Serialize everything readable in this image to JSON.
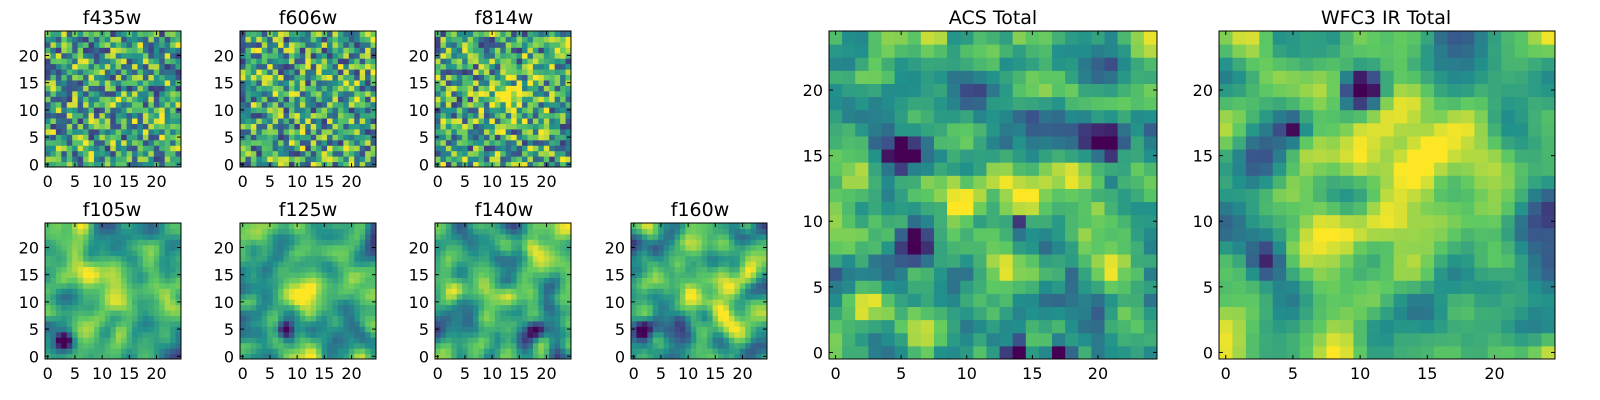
{
  "figure": {
    "colormap": "viridis",
    "colormap_stops": [
      "#440154",
      "#3b528b",
      "#21918c",
      "#5ec962",
      "#fde725"
    ],
    "frame_color": "#000000",
    "background": "#ffffff"
  },
  "chart_data": [
    {
      "type": "heatmap",
      "title": "f435w",
      "size": 25,
      "xticks": [
        0,
        5,
        10,
        15,
        20
      ],
      "yticks": [
        0,
        5,
        10,
        15,
        20
      ],
      "xlim": [
        -0.5,
        24.5
      ],
      "ylim": [
        -0.5,
        24.5
      ],
      "texture": "grainy",
      "seed": 11,
      "hotspots": [],
      "coldspots": []
    },
    {
      "type": "heatmap",
      "title": "f606w",
      "size": 25,
      "xticks": [
        0,
        5,
        10,
        15,
        20
      ],
      "yticks": [
        0,
        5,
        10,
        15,
        20
      ],
      "xlim": [
        -0.5,
        24.5
      ],
      "ylim": [
        -0.5,
        24.5
      ],
      "texture": "grainy",
      "seed": 23,
      "hotspots": [],
      "coldspots": []
    },
    {
      "type": "heatmap",
      "title": "f814w",
      "size": 25,
      "xticks": [
        0,
        5,
        10,
        15,
        20
      ],
      "yticks": [
        0,
        5,
        10,
        15,
        20
      ],
      "xlim": [
        -0.5,
        24.5
      ],
      "ylim": [
        -0.5,
        24.5
      ],
      "texture": "grainy",
      "seed": 37,
      "hotspots": [
        [
          13,
          12,
          2.5
        ]
      ],
      "coldspots": []
    },
    {
      "type": "heatmap",
      "title": "f105w",
      "size": 25,
      "xticks": [
        0,
        5,
        10,
        15,
        20
      ],
      "yticks": [
        0,
        5,
        10,
        15,
        20
      ],
      "xlim": [
        -0.5,
        24.5
      ],
      "ylim": [
        -0.5,
        24.5
      ],
      "texture": "smooth",
      "seed": 41,
      "hotspots": [
        [
          13,
          12,
          3
        ]
      ],
      "coldspots": [
        [
          3,
          3,
          1.2
        ]
      ]
    },
    {
      "type": "heatmap",
      "title": "f125w",
      "size": 25,
      "xticks": [
        0,
        5,
        10,
        15,
        20
      ],
      "yticks": [
        0,
        5,
        10,
        15,
        20
      ],
      "xlim": [
        -0.5,
        24.5
      ],
      "ylim": [
        -0.5,
        24.5
      ],
      "texture": "smooth",
      "seed": 53,
      "hotspots": [
        [
          12,
          11,
          2.5
        ]
      ],
      "coldspots": [
        [
          8,
          5,
          1.2
        ]
      ]
    },
    {
      "type": "heatmap",
      "title": "f140w",
      "size": 25,
      "xticks": [
        0,
        5,
        10,
        15,
        20
      ],
      "yticks": [
        0,
        5,
        10,
        15,
        20
      ],
      "xlim": [
        -0.5,
        24.5
      ],
      "ylim": [
        -0.5,
        24.5
      ],
      "texture": "smooth",
      "seed": 67,
      "hotspots": [
        [
          20,
          20,
          2.5
        ]
      ],
      "coldspots": [
        [
          18,
          5,
          1.2
        ]
      ]
    },
    {
      "type": "heatmap",
      "title": "f160w",
      "size": 25,
      "xticks": [
        0,
        5,
        10,
        15,
        20
      ],
      "yticks": [
        0,
        5,
        10,
        15,
        20
      ],
      "xlim": [
        -0.5,
        24.5
      ],
      "ylim": [
        -0.5,
        24.5
      ],
      "texture": "smooth",
      "seed": 79,
      "hotspots": [
        [
          13,
          12,
          3
        ]
      ],
      "coldspots": [
        [
          2,
          5,
          1.3
        ]
      ]
    },
    {
      "type": "heatmap",
      "title": "ACS Total",
      "size": 25,
      "xticks": [
        0,
        5,
        10,
        15,
        20
      ],
      "yticks": [
        0,
        5,
        10,
        15,
        20
      ],
      "xlim": [
        -0.5,
        24.5
      ],
      "ylim": [
        -0.5,
        24.5
      ],
      "texture": "blocky",
      "seed": 97,
      "hotspots": [
        [
          14,
          12,
          2.5
        ]
      ],
      "coldspots": [
        [
          6,
          8,
          1
        ],
        [
          5,
          15,
          0.8
        ],
        [
          14,
          10,
          0.7
        ],
        [
          21,
          16,
          0.8
        ],
        [
          17,
          0,
          0.7
        ],
        [
          14,
          0,
          0.7
        ]
      ]
    },
    {
      "type": "heatmap",
      "title": "WFC3 IR Total",
      "size": 25,
      "xticks": [
        0,
        5,
        10,
        15,
        20
      ],
      "yticks": [
        0,
        5,
        10,
        15,
        20
      ],
      "xlim": [
        -0.5,
        24.5
      ],
      "ylim": [
        -0.5,
        24.5
      ],
      "texture": "smooth",
      "seed": 113,
      "hotspots": [
        [
          13,
          12,
          3.5
        ]
      ],
      "coldspots": [
        [
          3,
          7,
          1.2
        ],
        [
          10,
          20,
          1
        ],
        [
          5,
          17,
          0.8
        ]
      ]
    }
  ]
}
